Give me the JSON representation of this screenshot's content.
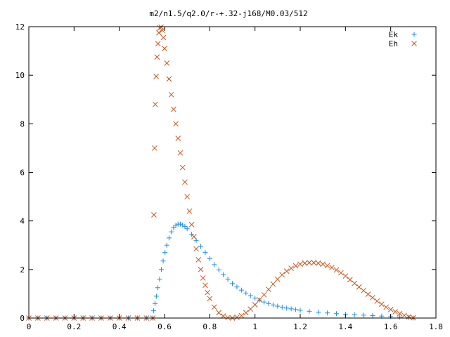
{
  "chart_data": {
    "type": "scatter",
    "title": "m2/n1.5/q2.0/r-+.32-j168/M0.03/512",
    "xlabel": "",
    "ylabel": "",
    "xlim": [
      0,
      1.8
    ],
    "ylim": [
      0,
      12
    ],
    "x_ticks": [
      "0",
      "0.2",
      "0.4",
      "0.6",
      "0.8",
      "1",
      "1.2",
      "1.4",
      "1.6",
      "1.8"
    ],
    "y_ticks": [
      "0",
      "2",
      "4",
      "6",
      "8",
      "10",
      "12"
    ],
    "grid": false,
    "legend_position": "top-right",
    "series": [
      {
        "name": "Ek",
        "marker": "+",
        "color": "#1a8fe6",
        "points": [
          [
            0.0,
            0
          ],
          [
            0.04,
            0
          ],
          [
            0.08,
            0
          ],
          [
            0.12,
            0
          ],
          [
            0.16,
            0
          ],
          [
            0.2,
            0
          ],
          [
            0.24,
            0
          ],
          [
            0.28,
            0
          ],
          [
            0.32,
            0
          ],
          [
            0.36,
            0
          ],
          [
            0.4,
            0
          ],
          [
            0.44,
            0
          ],
          [
            0.48,
            0
          ],
          [
            0.52,
            0
          ],
          [
            0.548,
            0
          ],
          [
            0.552,
            0.3
          ],
          [
            0.558,
            0.6
          ],
          [
            0.564,
            0.9
          ],
          [
            0.57,
            1.25
          ],
          [
            0.578,
            1.6
          ],
          [
            0.586,
            2.0
          ],
          [
            0.594,
            2.35
          ],
          [
            0.602,
            2.7
          ],
          [
            0.61,
            3.0
          ],
          [
            0.62,
            3.3
          ],
          [
            0.63,
            3.55
          ],
          [
            0.64,
            3.72
          ],
          [
            0.65,
            3.82
          ],
          [
            0.66,
            3.87
          ],
          [
            0.67,
            3.87
          ],
          [
            0.68,
            3.83
          ],
          [
            0.69,
            3.77
          ],
          [
            0.7,
            3.68
          ],
          [
            0.72,
            3.45
          ],
          [
            0.74,
            3.2
          ],
          [
            0.76,
            2.95
          ],
          [
            0.78,
            2.7
          ],
          [
            0.8,
            2.45
          ],
          [
            0.82,
            2.2
          ],
          [
            0.84,
            1.98
          ],
          [
            0.86,
            1.78
          ],
          [
            0.88,
            1.6
          ],
          [
            0.9,
            1.42
          ],
          [
            0.92,
            1.28
          ],
          [
            0.94,
            1.15
          ],
          [
            0.96,
            1.03
          ],
          [
            0.98,
            0.92
          ],
          [
            1.0,
            0.82
          ],
          [
            1.02,
            0.74
          ],
          [
            1.04,
            0.66
          ],
          [
            1.06,
            0.6
          ],
          [
            1.08,
            0.54
          ],
          [
            1.1,
            0.49
          ],
          [
            1.12,
            0.45
          ],
          [
            1.14,
            0.41
          ],
          [
            1.16,
            0.38
          ],
          [
            1.18,
            0.35
          ],
          [
            1.2,
            0.32
          ],
          [
            1.24,
            0.28
          ],
          [
            1.28,
            0.24
          ],
          [
            1.32,
            0.21
          ],
          [
            1.36,
            0.18
          ],
          [
            1.4,
            0.16
          ],
          [
            1.44,
            0.14
          ],
          [
            1.48,
            0.12
          ],
          [
            1.52,
            0.1
          ],
          [
            1.56,
            0.08
          ],
          [
            1.6,
            0.06
          ],
          [
            1.64,
            0.04
          ],
          [
            1.68,
            0.02
          ],
          [
            1.7,
            0.0
          ]
        ]
      },
      {
        "name": "Eh",
        "marker": "x",
        "color": "#c8541a",
        "points": [
          [
            0.0,
            0
          ],
          [
            0.04,
            0
          ],
          [
            0.08,
            0
          ],
          [
            0.12,
            0
          ],
          [
            0.16,
            0
          ],
          [
            0.2,
            0
          ],
          [
            0.24,
            0
          ],
          [
            0.28,
            0
          ],
          [
            0.32,
            0
          ],
          [
            0.36,
            0
          ],
          [
            0.4,
            0
          ],
          [
            0.44,
            0
          ],
          [
            0.48,
            0
          ],
          [
            0.52,
            0
          ],
          [
            0.548,
            0
          ],
          [
            0.553,
            4.25
          ],
          [
            0.556,
            7.0
          ],
          [
            0.559,
            8.8
          ],
          [
            0.563,
            9.95
          ],
          [
            0.567,
            10.75
          ],
          [
            0.571,
            11.3
          ],
          [
            0.575,
            11.75
          ],
          [
            0.579,
            11.95
          ],
          [
            0.585,
            11.98
          ],
          [
            0.59,
            11.85
          ],
          [
            0.595,
            11.55
          ],
          [
            0.6,
            11.1
          ],
          [
            0.61,
            10.5
          ],
          [
            0.62,
            9.85
          ],
          [
            0.63,
            9.2
          ],
          [
            0.64,
            8.6
          ],
          [
            0.65,
            8.0
          ],
          [
            0.66,
            7.4
          ],
          [
            0.67,
            6.8
          ],
          [
            0.68,
            6.2
          ],
          [
            0.69,
            5.6
          ],
          [
            0.7,
            5.0
          ],
          [
            0.71,
            4.4
          ],
          [
            0.72,
            3.85
          ],
          [
            0.73,
            3.35
          ],
          [
            0.74,
            2.85
          ],
          [
            0.75,
            2.4
          ],
          [
            0.76,
            2.0
          ],
          [
            0.77,
            1.65
          ],
          [
            0.78,
            1.35
          ],
          [
            0.79,
            1.05
          ],
          [
            0.8,
            0.8
          ],
          [
            0.82,
            0.45
          ],
          [
            0.84,
            0.22
          ],
          [
            0.86,
            0.08
          ],
          [
            0.88,
            0.02
          ],
          [
            0.9,
            0.0
          ],
          [
            0.92,
            0.03
          ],
          [
            0.94,
            0.1
          ],
          [
            0.96,
            0.22
          ],
          [
            0.98,
            0.37
          ],
          [
            1.0,
            0.55
          ],
          [
            1.02,
            0.75
          ],
          [
            1.04,
            0.96
          ],
          [
            1.06,
            1.18
          ],
          [
            1.08,
            1.4
          ],
          [
            1.1,
            1.6
          ],
          [
            1.12,
            1.78
          ],
          [
            1.14,
            1.93
          ],
          [
            1.16,
            2.05
          ],
          [
            1.18,
            2.15
          ],
          [
            1.2,
            2.22
          ],
          [
            1.22,
            2.26
          ],
          [
            1.24,
            2.28
          ],
          [
            1.26,
            2.28
          ],
          [
            1.28,
            2.26
          ],
          [
            1.3,
            2.22
          ],
          [
            1.32,
            2.16
          ],
          [
            1.34,
            2.08
          ],
          [
            1.36,
            1.98
          ],
          [
            1.38,
            1.86
          ],
          [
            1.4,
            1.73
          ],
          [
            1.42,
            1.58
          ],
          [
            1.44,
            1.43
          ],
          [
            1.46,
            1.28
          ],
          [
            1.48,
            1.13
          ],
          [
            1.5,
            0.98
          ],
          [
            1.52,
            0.84
          ],
          [
            1.54,
            0.7
          ],
          [
            1.56,
            0.57
          ],
          [
            1.58,
            0.45
          ],
          [
            1.6,
            0.35
          ],
          [
            1.62,
            0.26
          ],
          [
            1.64,
            0.18
          ],
          [
            1.66,
            0.11
          ],
          [
            1.68,
            0.05
          ],
          [
            1.7,
            0.01
          ]
        ]
      }
    ]
  }
}
